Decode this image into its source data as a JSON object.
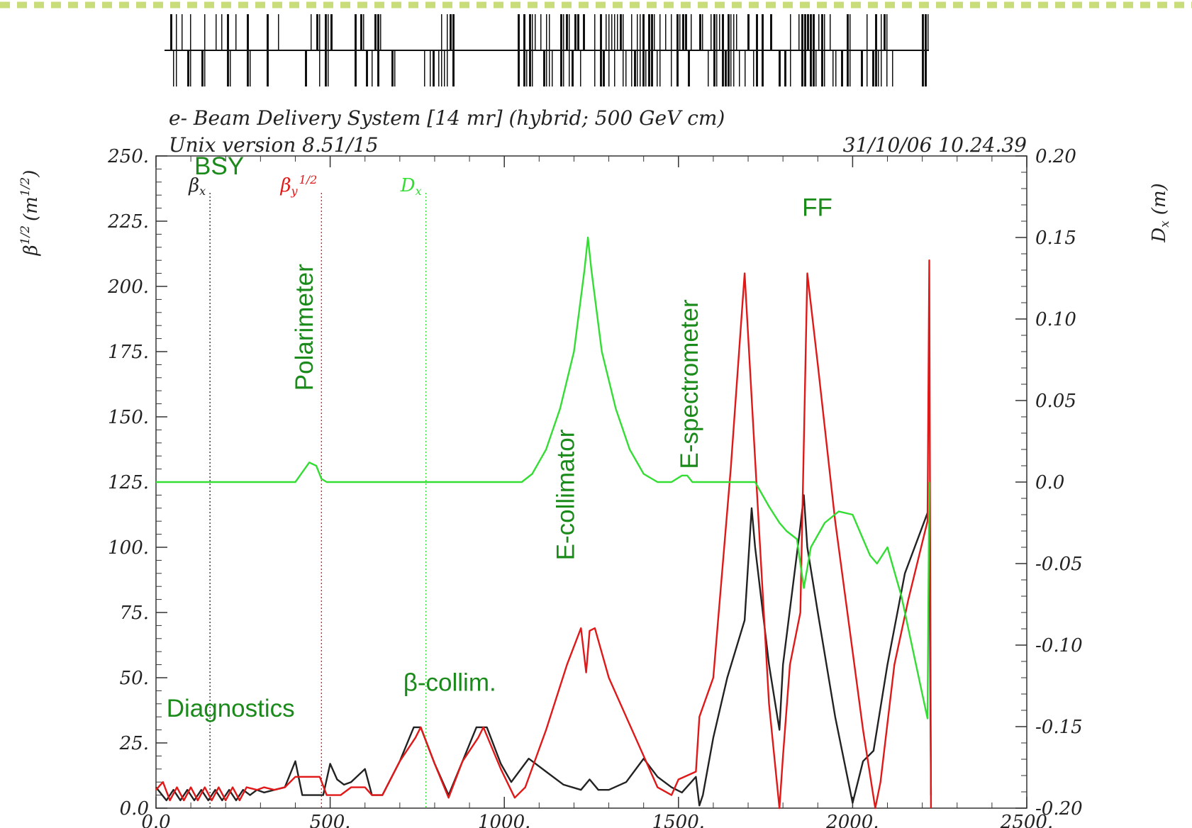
{
  "chart_data": {
    "type": "line",
    "header": {
      "title": "e- Beam Delivery System [14 mr] (hybrid; 500 GeV cm)",
      "version": "Unix version 8.51/15",
      "timestamp": "31/10/06  10.24.39"
    },
    "left_axis": {
      "label_main": "β",
      "label_sup": "1/2",
      "label_unit": "(m",
      "label_unit_sup": "1/2",
      "label_close": ")",
      "ylim": [
        0,
        250
      ],
      "ticks": [
        0,
        25,
        50,
        75,
        100,
        125,
        150,
        175,
        200,
        225,
        250
      ],
      "tick_labels": [
        "0.0",
        "25.",
        "50.",
        "75.",
        "100.",
        "125.",
        "150.",
        "175.",
        "200.",
        "225.",
        "250."
      ]
    },
    "right_axis": {
      "label_main": "D",
      "label_sub": "x",
      "label_unit": "(m)",
      "ylim": [
        -0.2,
        0.2
      ],
      "ticks": [
        -0.2,
        -0.15,
        -0.1,
        -0.05,
        0.0,
        0.05,
        0.1,
        0.15,
        0.2
      ],
      "tick_labels": [
        "-0.20",
        "-0.15",
        "-0.10",
        "-0.05",
        "0.0",
        "0.05",
        "0.10",
        "0.15",
        "0.20"
      ]
    },
    "x_axis": {
      "xlim": [
        0,
        2500
      ],
      "ticks": [
        0,
        500,
        1000,
        1500,
        2000,
        2500
      ],
      "tick_labels": [
        "0.0",
        "500.",
        "1000.",
        "1500.",
        "2000.",
        "2500."
      ]
    },
    "legend": [
      {
        "base": "β",
        "sub": "x",
        "sup": "",
        "color": "#222222",
        "x": 155
      },
      {
        "base": "β",
        "sub": "y",
        "sup": "1/2",
        "color": "#e01818",
        "x": 475
      },
      {
        "base": "D",
        "sub": "x",
        "sup": "",
        "color": "#33dd33",
        "x": 775
      }
    ],
    "annotations": [
      {
        "text": "BSY",
        "x": 110,
        "y": 243,
        "rotate": false
      },
      {
        "text": "Polarimeter",
        "x": 450,
        "y": 160,
        "rotate": true
      },
      {
        "text": "Diagnostics",
        "x": 30,
        "y": 35,
        "rotate": false
      },
      {
        "text": "β-collim.",
        "x": 710,
        "y": 45,
        "rotate": false
      },
      {
        "text": "E-collimator",
        "x": 1200,
        "y": 95,
        "rotate": true
      },
      {
        "text": "E-spectrometer",
        "x": 1555,
        "y": 130,
        "rotate": true
      },
      {
        "text": "FF",
        "x": 1855,
        "y": 227,
        "rotate": false
      }
    ],
    "series": [
      {
        "name": "βx",
        "color": "#222222",
        "axis": "left",
        "points": [
          [
            0,
            8
          ],
          [
            30,
            3
          ],
          [
            50,
            7
          ],
          [
            70,
            3
          ],
          [
            90,
            7
          ],
          [
            110,
            3
          ],
          [
            130,
            7
          ],
          [
            150,
            3
          ],
          [
            170,
            7
          ],
          [
            190,
            3
          ],
          [
            210,
            7
          ],
          [
            230,
            3
          ],
          [
            250,
            7
          ],
          [
            270,
            5
          ],
          [
            290,
            7
          ],
          [
            310,
            6
          ],
          [
            340,
            7
          ],
          [
            370,
            8
          ],
          [
            400,
            18
          ],
          [
            420,
            5
          ],
          [
            450,
            5
          ],
          [
            480,
            5
          ],
          [
            500,
            17
          ],
          [
            520,
            11
          ],
          [
            540,
            9
          ],
          [
            560,
            10
          ],
          [
            600,
            15
          ],
          [
            620,
            5
          ],
          [
            650,
            5
          ],
          [
            700,
            18
          ],
          [
            740,
            31
          ],
          [
            760,
            31
          ],
          [
            800,
            17
          ],
          [
            840,
            5
          ],
          [
            880,
            18
          ],
          [
            920,
            31
          ],
          [
            950,
            31
          ],
          [
            990,
            17
          ],
          [
            1020,
            10
          ],
          [
            1070,
            19
          ],
          [
            1120,
            14
          ],
          [
            1170,
            9
          ],
          [
            1220,
            7
          ],
          [
            1245,
            11
          ],
          [
            1270,
            7
          ],
          [
            1300,
            7
          ],
          [
            1350,
            10
          ],
          [
            1400,
            19
          ],
          [
            1440,
            12
          ],
          [
            1480,
            8
          ],
          [
            1510,
            6
          ],
          [
            1550,
            12
          ],
          [
            1560,
            1
          ],
          [
            1570,
            5
          ],
          [
            1600,
            27
          ],
          [
            1640,
            50
          ],
          [
            1690,
            72
          ],
          [
            1710,
            115
          ],
          [
            1720,
            100
          ],
          [
            1760,
            55
          ],
          [
            1790,
            30
          ],
          [
            1800,
            55
          ],
          [
            1850,
            108
          ],
          [
            1860,
            120
          ],
          [
            1870,
            100
          ],
          [
            1900,
            75
          ],
          [
            1950,
            35
          ],
          [
            2000,
            2
          ],
          [
            2030,
            18
          ],
          [
            2060,
            22
          ],
          [
            2100,
            55
          ],
          [
            2150,
            90
          ],
          [
            2220,
            115
          ],
          [
            2225,
            5
          ]
        ]
      },
      {
        "name": "βy",
        "color": "#e01818",
        "axis": "left",
        "points": [
          [
            0,
            7
          ],
          [
            20,
            10
          ],
          [
            40,
            3
          ],
          [
            60,
            8
          ],
          [
            80,
            3
          ],
          [
            100,
            8
          ],
          [
            120,
            3
          ],
          [
            140,
            8
          ],
          [
            160,
            3
          ],
          [
            180,
            8
          ],
          [
            200,
            3
          ],
          [
            220,
            8
          ],
          [
            240,
            3
          ],
          [
            260,
            8
          ],
          [
            290,
            7
          ],
          [
            310,
            8
          ],
          [
            340,
            7
          ],
          [
            370,
            8
          ],
          [
            400,
            12
          ],
          [
            470,
            12
          ],
          [
            490,
            5
          ],
          [
            530,
            5
          ],
          [
            560,
            8
          ],
          [
            600,
            8
          ],
          [
            620,
            5
          ],
          [
            650,
            5
          ],
          [
            700,
            18
          ],
          [
            745,
            27
          ],
          [
            760,
            31
          ],
          [
            800,
            17
          ],
          [
            840,
            4
          ],
          [
            880,
            18
          ],
          [
            925,
            27
          ],
          [
            940,
            31
          ],
          [
            990,
            15
          ],
          [
            1030,
            4
          ],
          [
            1060,
            8
          ],
          [
            1120,
            30
          ],
          [
            1180,
            55
          ],
          [
            1220,
            69
          ],
          [
            1235,
            52
          ],
          [
            1245,
            68
          ],
          [
            1260,
            69
          ],
          [
            1300,
            50
          ],
          [
            1350,
            35
          ],
          [
            1400,
            20
          ],
          [
            1440,
            8
          ],
          [
            1480,
            5
          ],
          [
            1500,
            11
          ],
          [
            1550,
            14
          ],
          [
            1560,
            35
          ],
          [
            1600,
            50
          ],
          [
            1650,
            130
          ],
          [
            1690,
            205
          ],
          [
            1730,
            110
          ],
          [
            1760,
            40
          ],
          [
            1790,
            0
          ],
          [
            1800,
            20
          ],
          [
            1820,
            55
          ],
          [
            1850,
            75
          ],
          [
            1870,
            205
          ],
          [
            1900,
            170
          ],
          [
            1950,
            110
          ],
          [
            2000,
            60
          ],
          [
            2030,
            30
          ],
          [
            2065,
            0
          ],
          [
            2080,
            10
          ],
          [
            2120,
            55
          ],
          [
            2160,
            80
          ],
          [
            2215,
            110
          ],
          [
            2220,
            210
          ],
          [
            2225,
            0
          ]
        ]
      },
      {
        "name": "Dx",
        "color": "#33dd33",
        "axis": "right",
        "points": [
          [
            0,
            0.0
          ],
          [
            400,
            0.0
          ],
          [
            420,
            0.006
          ],
          [
            440,
            0.012
          ],
          [
            460,
            0.01
          ],
          [
            475,
            0.002
          ],
          [
            490,
            0.0
          ],
          [
            1050,
            0.0
          ],
          [
            1080,
            0.005
          ],
          [
            1120,
            0.02
          ],
          [
            1160,
            0.045
          ],
          [
            1200,
            0.08
          ],
          [
            1230,
            0.13
          ],
          [
            1240,
            0.15
          ],
          [
            1250,
            0.13
          ],
          [
            1280,
            0.08
          ],
          [
            1320,
            0.045
          ],
          [
            1360,
            0.02
          ],
          [
            1400,
            0.005
          ],
          [
            1440,
            0.0
          ],
          [
            1480,
            0.0
          ],
          [
            1510,
            0.004
          ],
          [
            1525,
            0.004
          ],
          [
            1540,
            0.0
          ],
          [
            1700,
            0.0
          ],
          [
            1720,
            0.0
          ],
          [
            1760,
            -0.015
          ],
          [
            1790,
            -0.025
          ],
          [
            1810,
            -0.03
          ],
          [
            1840,
            -0.035
          ],
          [
            1860,
            -0.065
          ],
          [
            1880,
            -0.04
          ],
          [
            1920,
            -0.025
          ],
          [
            1960,
            -0.018
          ],
          [
            2000,
            -0.02
          ],
          [
            2030,
            -0.035
          ],
          [
            2050,
            -0.045
          ],
          [
            2070,
            -0.05
          ],
          [
            2100,
            -0.04
          ],
          [
            2140,
            -0.07
          ],
          [
            2180,
            -0.11
          ],
          [
            2215,
            -0.145
          ],
          [
            2220,
            0.0
          ]
        ]
      }
    ]
  }
}
